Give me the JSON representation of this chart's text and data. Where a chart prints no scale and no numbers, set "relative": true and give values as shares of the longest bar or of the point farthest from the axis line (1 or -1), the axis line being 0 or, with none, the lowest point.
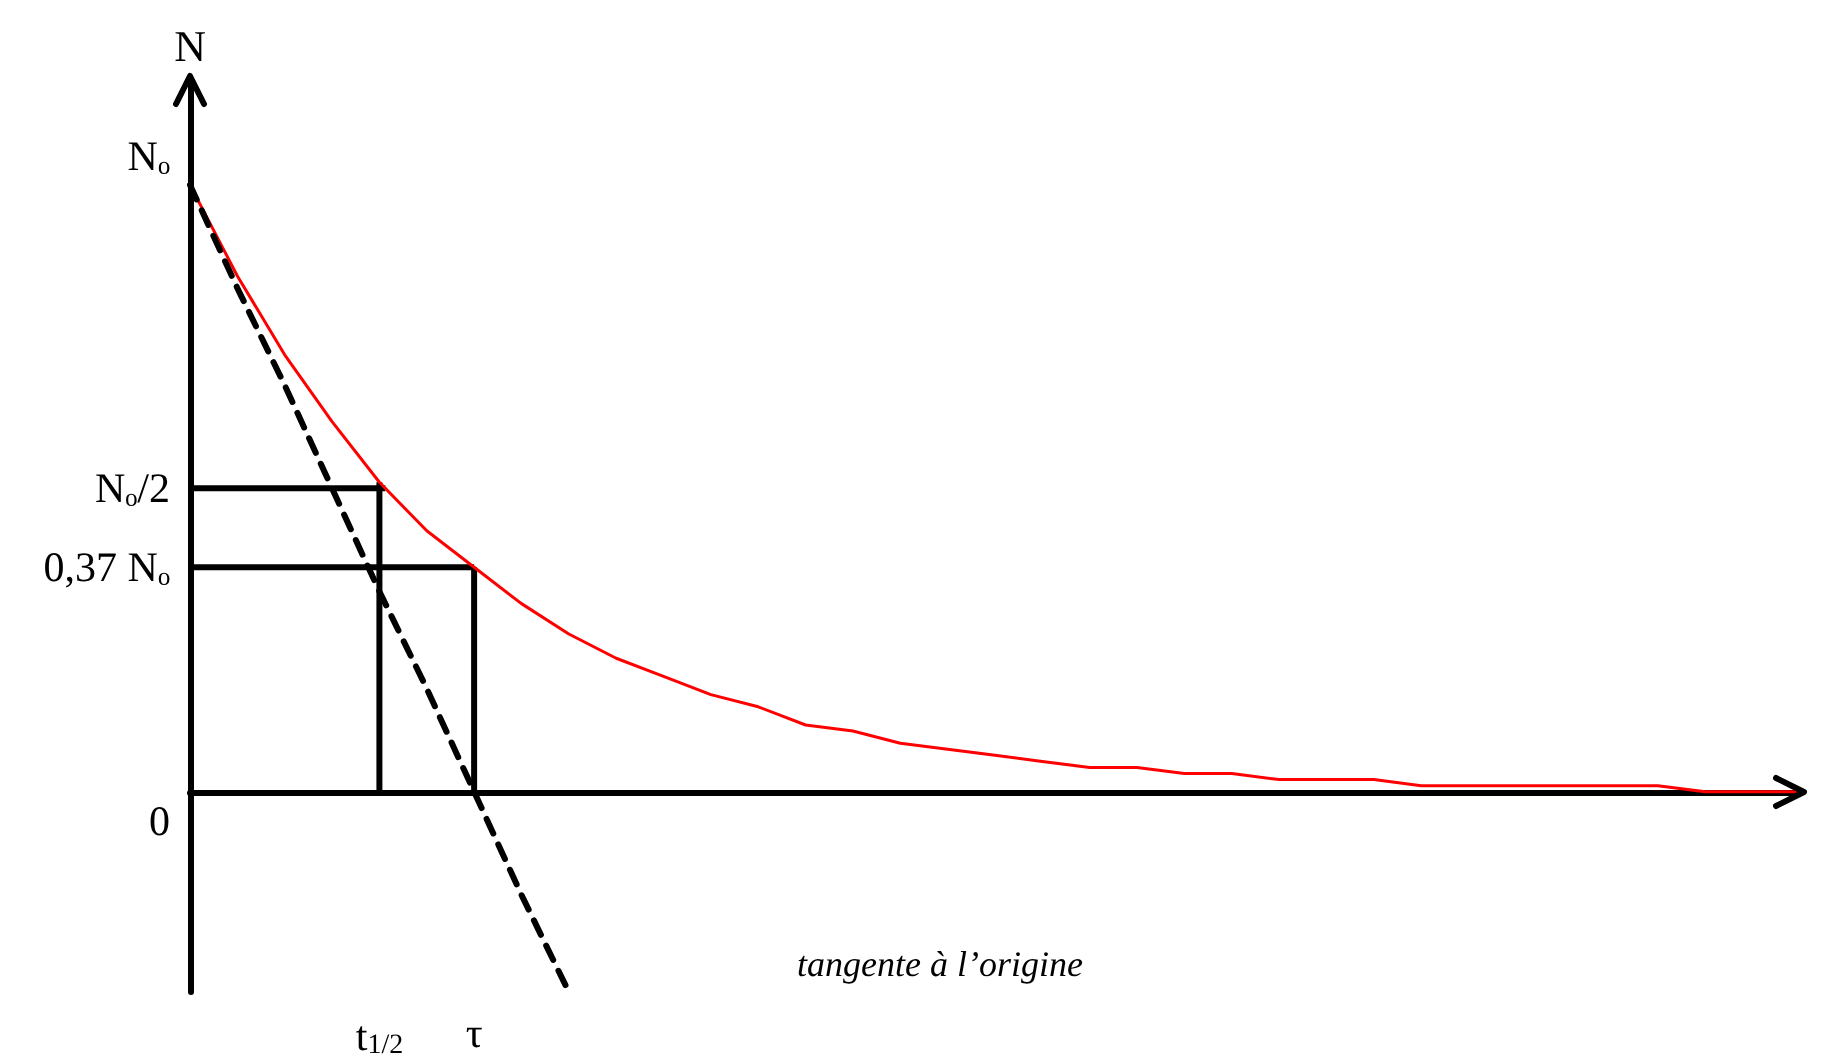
{
  "chart_data": {
    "type": "line",
    "ylabel": "N",
    "relative": true,
    "categories": [
      null,
      null,
      null,
      null,
      "t$_{1/2}$",
      null,
      "τ",
      null,
      null,
      null,
      null,
      null,
      null,
      null,
      null,
      null,
      null,
      null,
      null,
      null,
      null,
      null,
      null,
      null,
      null,
      null,
      null,
      null,
      null,
      null,
      null,
      null,
      null,
      null,
      null
    ],
    "series": [
      {
        "color": "#ff0000",
        "values": [
          1,
          0.85,
          0.72,
          0.61,
          0.51,
          0.43,
          0.37,
          0.31,
          0.26,
          0.22,
          0.19,
          0.16,
          0.14,
          0.11,
          0.1,
          0.08,
          0.07,
          0.06,
          0.05,
          0.04,
          0.04,
          0.03,
          0.03,
          0.02,
          0.02,
          0.02,
          0.01,
          0.01,
          0.01,
          0.01,
          0.01,
          0.01,
          0,
          0,
          0
        ]
      },
      {
        "color": "#000000",
        "line_style": "dashed",
        "values": [
          1,
          0.83,
          0.67,
          0.5,
          0.33,
          0.17,
          0,
          -0.17,
          -0.33,
          null,
          null,
          null,
          null,
          null,
          null,
          null,
          null,
          null,
          null,
          null,
          null,
          null,
          null,
          null,
          null,
          null,
          null,
          null,
          null,
          null,
          null,
          null,
          null,
          null,
          null
        ]
      }
    ],
    "ref_lines": [
      {
        "axis": "y",
        "value": 0.5,
        "label": "Nₒ/2",
        "color": "#000000"
      },
      {
        "axis": "y",
        "value": 0.37,
        "label": "0,37 Nₒ",
        "color": "#000000"
      },
      {
        "axis": "x",
        "value": "t$_{1/2}$",
        "color": "#000000"
      },
      {
        "axis": "x",
        "value": "τ",
        "color": "#000000"
      }
    ],
    "annotations": [
      "Nₒ",
      "0",
      "tangente à l’origine"
    ]
  }
}
